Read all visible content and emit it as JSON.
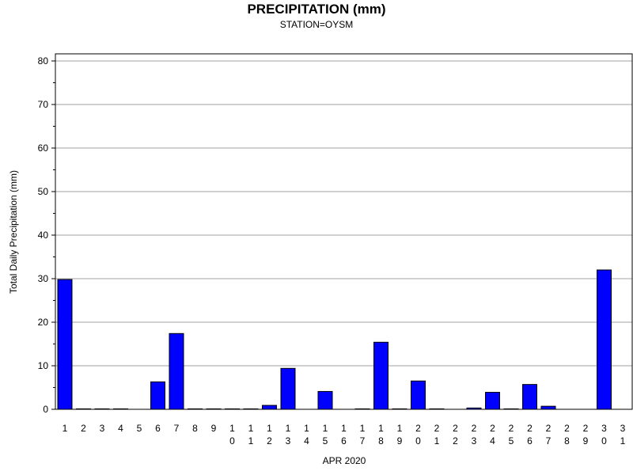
{
  "chart_data": {
    "type": "bar",
    "title": "PRECIPITATION (mm)",
    "subtitle": "STATION=OYSM",
    "xlabel": "APR 2020",
    "ylabel": "Total Daily Precipitation (mm)",
    "ylim": [
      0,
      80
    ],
    "yticks": [
      "0",
      "10",
      "20",
      "30",
      "40",
      "50",
      "60",
      "70",
      "80"
    ],
    "grid": true,
    "bar_color": "#0000ff",
    "categories": [
      "1",
      "2",
      "3",
      "4",
      "5",
      "6",
      "7",
      "8",
      "9",
      "10",
      "11",
      "12",
      "13",
      "14",
      "15",
      "16",
      "17",
      "18",
      "19",
      "20",
      "21",
      "22",
      "23",
      "24",
      "25",
      "26",
      "27",
      "28",
      "29",
      "30",
      "31"
    ],
    "values": [
      29.8,
      0.1,
      0.1,
      0.1,
      null,
      6.3,
      17.4,
      0.1,
      0.1,
      0.1,
      0.1,
      0.9,
      9.4,
      null,
      4.1,
      null,
      0.1,
      15.4,
      0.1,
      6.5,
      0.1,
      null,
      0.3,
      3.9,
      0.1,
      5.7,
      0.7,
      null,
      null,
      32.0,
      null
    ]
  }
}
